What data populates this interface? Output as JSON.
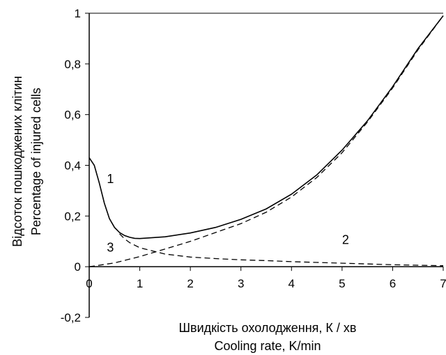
{
  "chart_data": {
    "type": "line",
    "xlabel": [
      "Швидкість охолодження, К / хв",
      "Cooling rate, K/min"
    ],
    "ylabel": [
      "Відсоток пошкоджених клітин",
      "Percentage of injured cells"
    ],
    "xlim": [
      0,
      7
    ],
    "ylim": [
      -0.2,
      1
    ],
    "x_ticks": [
      0,
      1,
      2,
      3,
      4,
      5,
      6,
      7
    ],
    "x_tick_labels": [
      "0",
      "1",
      "2",
      "3",
      "4",
      "5",
      "6",
      "7"
    ],
    "y_ticks": [
      -0.2,
      0,
      0.2,
      0.4,
      0.6,
      0.8,
      1
    ],
    "y_tick_labels": [
      "-0,2",
      "0",
      "0,2",
      "0,4",
      "0,6",
      "0,8",
      "1"
    ],
    "grid": false,
    "legend": "none",
    "series": [
      {
        "label": "1",
        "style": "solid",
        "x": [
          0,
          0.1,
          0.2,
          0.3,
          0.4,
          0.5,
          0.6,
          0.7,
          0.8,
          0.9,
          1.0,
          1.5,
          2.0,
          2.5,
          3.0,
          3.5,
          4.0,
          4.5,
          5.0,
          5.5,
          6.0,
          6.5,
          7.0
        ],
        "y": [
          0.43,
          0.4,
          0.33,
          0.25,
          0.19,
          0.155,
          0.135,
          0.123,
          0.116,
          0.112,
          0.111,
          0.118,
          0.133,
          0.155,
          0.187,
          0.228,
          0.286,
          0.362,
          0.46,
          0.575,
          0.71,
          0.86,
          0.99
        ]
      },
      {
        "label": "2",
        "style": "dashed",
        "x": [
          0.6,
          0.7,
          0.8,
          1.0,
          1.5,
          2.0,
          2.5,
          3.0,
          3.5,
          4.0,
          4.5,
          5.0,
          5.5,
          6.0,
          6.5,
          7.0
        ],
        "y": [
          0.13,
          0.11,
          0.095,
          0.075,
          0.05,
          0.038,
          0.032,
          0.027,
          0.024,
          0.02,
          0.017,
          0.014,
          0.011,
          0.008,
          0.006,
          0.004
        ]
      },
      {
        "label": "3",
        "style": "dashed",
        "x": [
          0,
          0.5,
          1.0,
          1.5,
          2.0,
          2.5,
          3.0,
          3.5,
          4.0,
          4.5,
          5.0,
          5.5,
          6.0,
          6.5,
          7.0
        ],
        "y": [
          0.0,
          0.015,
          0.04,
          0.07,
          0.1,
          0.135,
          0.17,
          0.215,
          0.275,
          0.352,
          0.45,
          0.57,
          0.705,
          0.855,
          0.99
        ]
      }
    ],
    "annotations": [
      {
        "text": "1",
        "x": 0.35,
        "y": 0.33
      },
      {
        "text": "2",
        "x": 5.0,
        "y": 0.09
      },
      {
        "text": "3",
        "x": 0.35,
        "y": 0.06
      }
    ]
  }
}
